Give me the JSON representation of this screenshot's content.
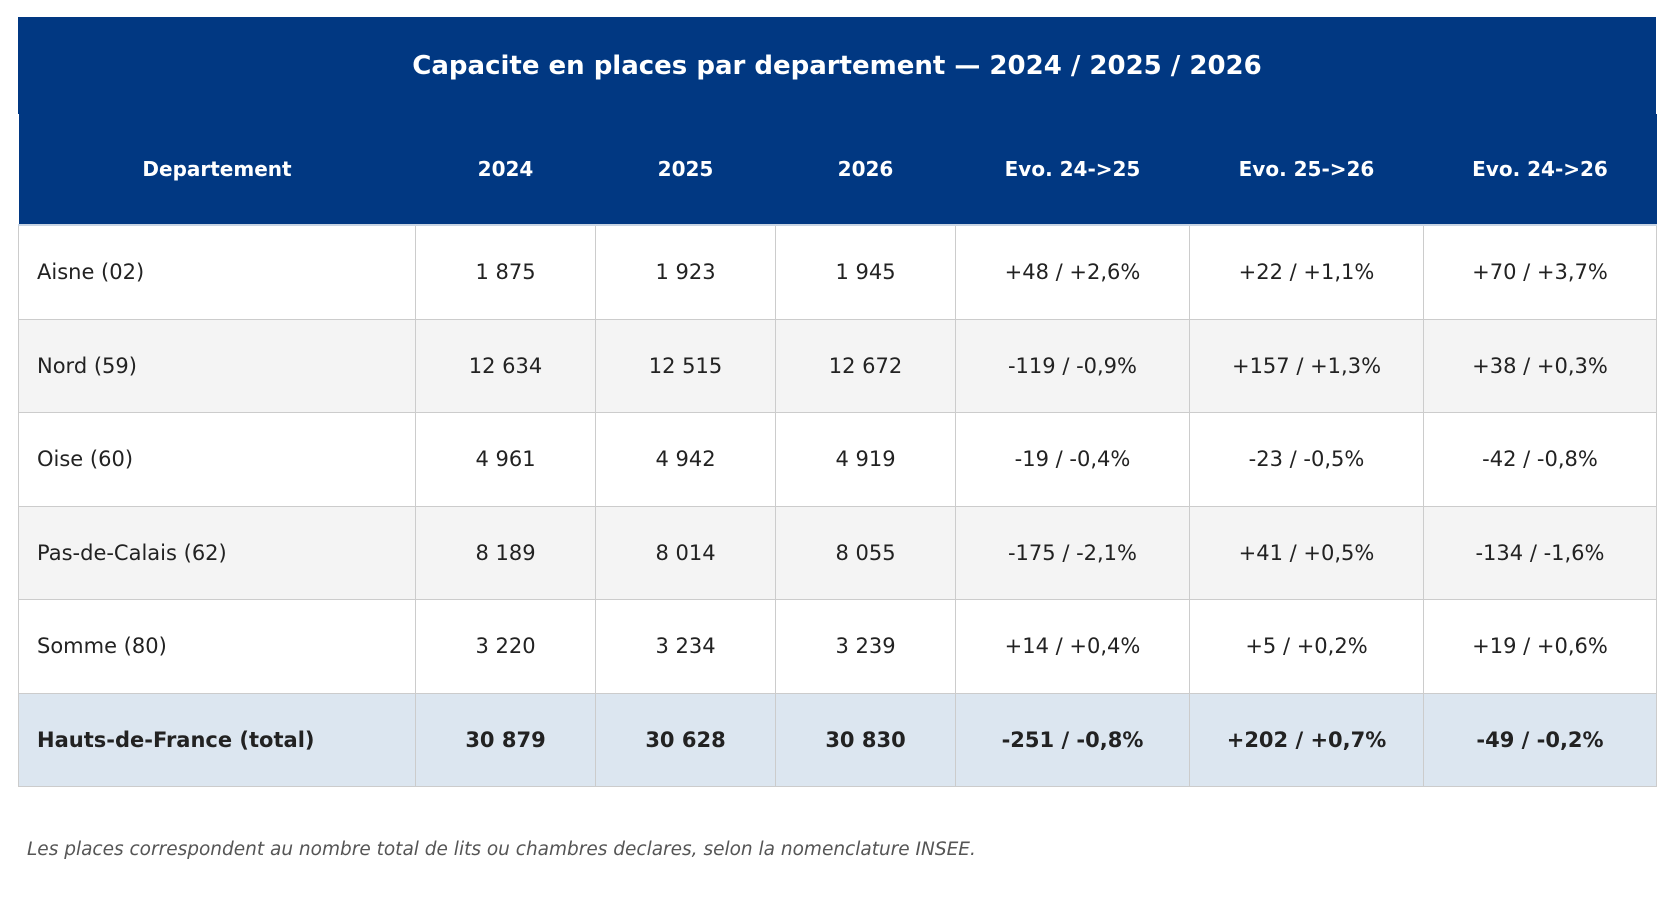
{
  "colors": {
    "header_bg": "#013882",
    "header_text": "#ffffff",
    "row_even_bg": "#f4f4f4",
    "total_bg": "#dce6f0",
    "border": "#cccccc"
  },
  "chart_data": {
    "type": "table",
    "title": "Capacite en places par departement — 2024 / 2025 / 2026",
    "columns": [
      "Departement",
      "2024",
      "2025",
      "2026",
      "Evo. 24->25",
      "Evo. 25->26",
      "Evo. 24->26"
    ],
    "rows": [
      [
        "Aisne (02)",
        "1 875",
        "1 923",
        "1 945",
        "+48 / +2,6%",
        "+22 / +1,1%",
        "+70 / +3,7%"
      ],
      [
        "Nord (59)",
        "12 634",
        "12 515",
        "12 672",
        "-119 / -0,9%",
        "+157 / +1,3%",
        "+38 / +0,3%"
      ],
      [
        "Oise (60)",
        "4 961",
        "4 942",
        "4 919",
        "-19 / -0,4%",
        "-23 / -0,5%",
        "-42 / -0,8%"
      ],
      [
        "Pas-de-Calais (62)",
        "8 189",
        "8 014",
        "8 055",
        "-175 / -2,1%",
        "+41 / +0,5%",
        "-134 / -1,6%"
      ],
      [
        "Somme (80)",
        "3 220",
        "3 234",
        "3 239",
        "+14 / +0,4%",
        "+5 / +0,2%",
        "+19 / +0,6%"
      ]
    ],
    "total": [
      "Hauts-de-France (total)",
      "30 879",
      "30 628",
      "30 830",
      "-251 / -0,8%",
      "+202 / +0,7%",
      "-49 / -0,2%"
    ],
    "note": "Les places correspondent au nombre total de lits ou chambres declares, selon la nomenclature INSEE."
  }
}
